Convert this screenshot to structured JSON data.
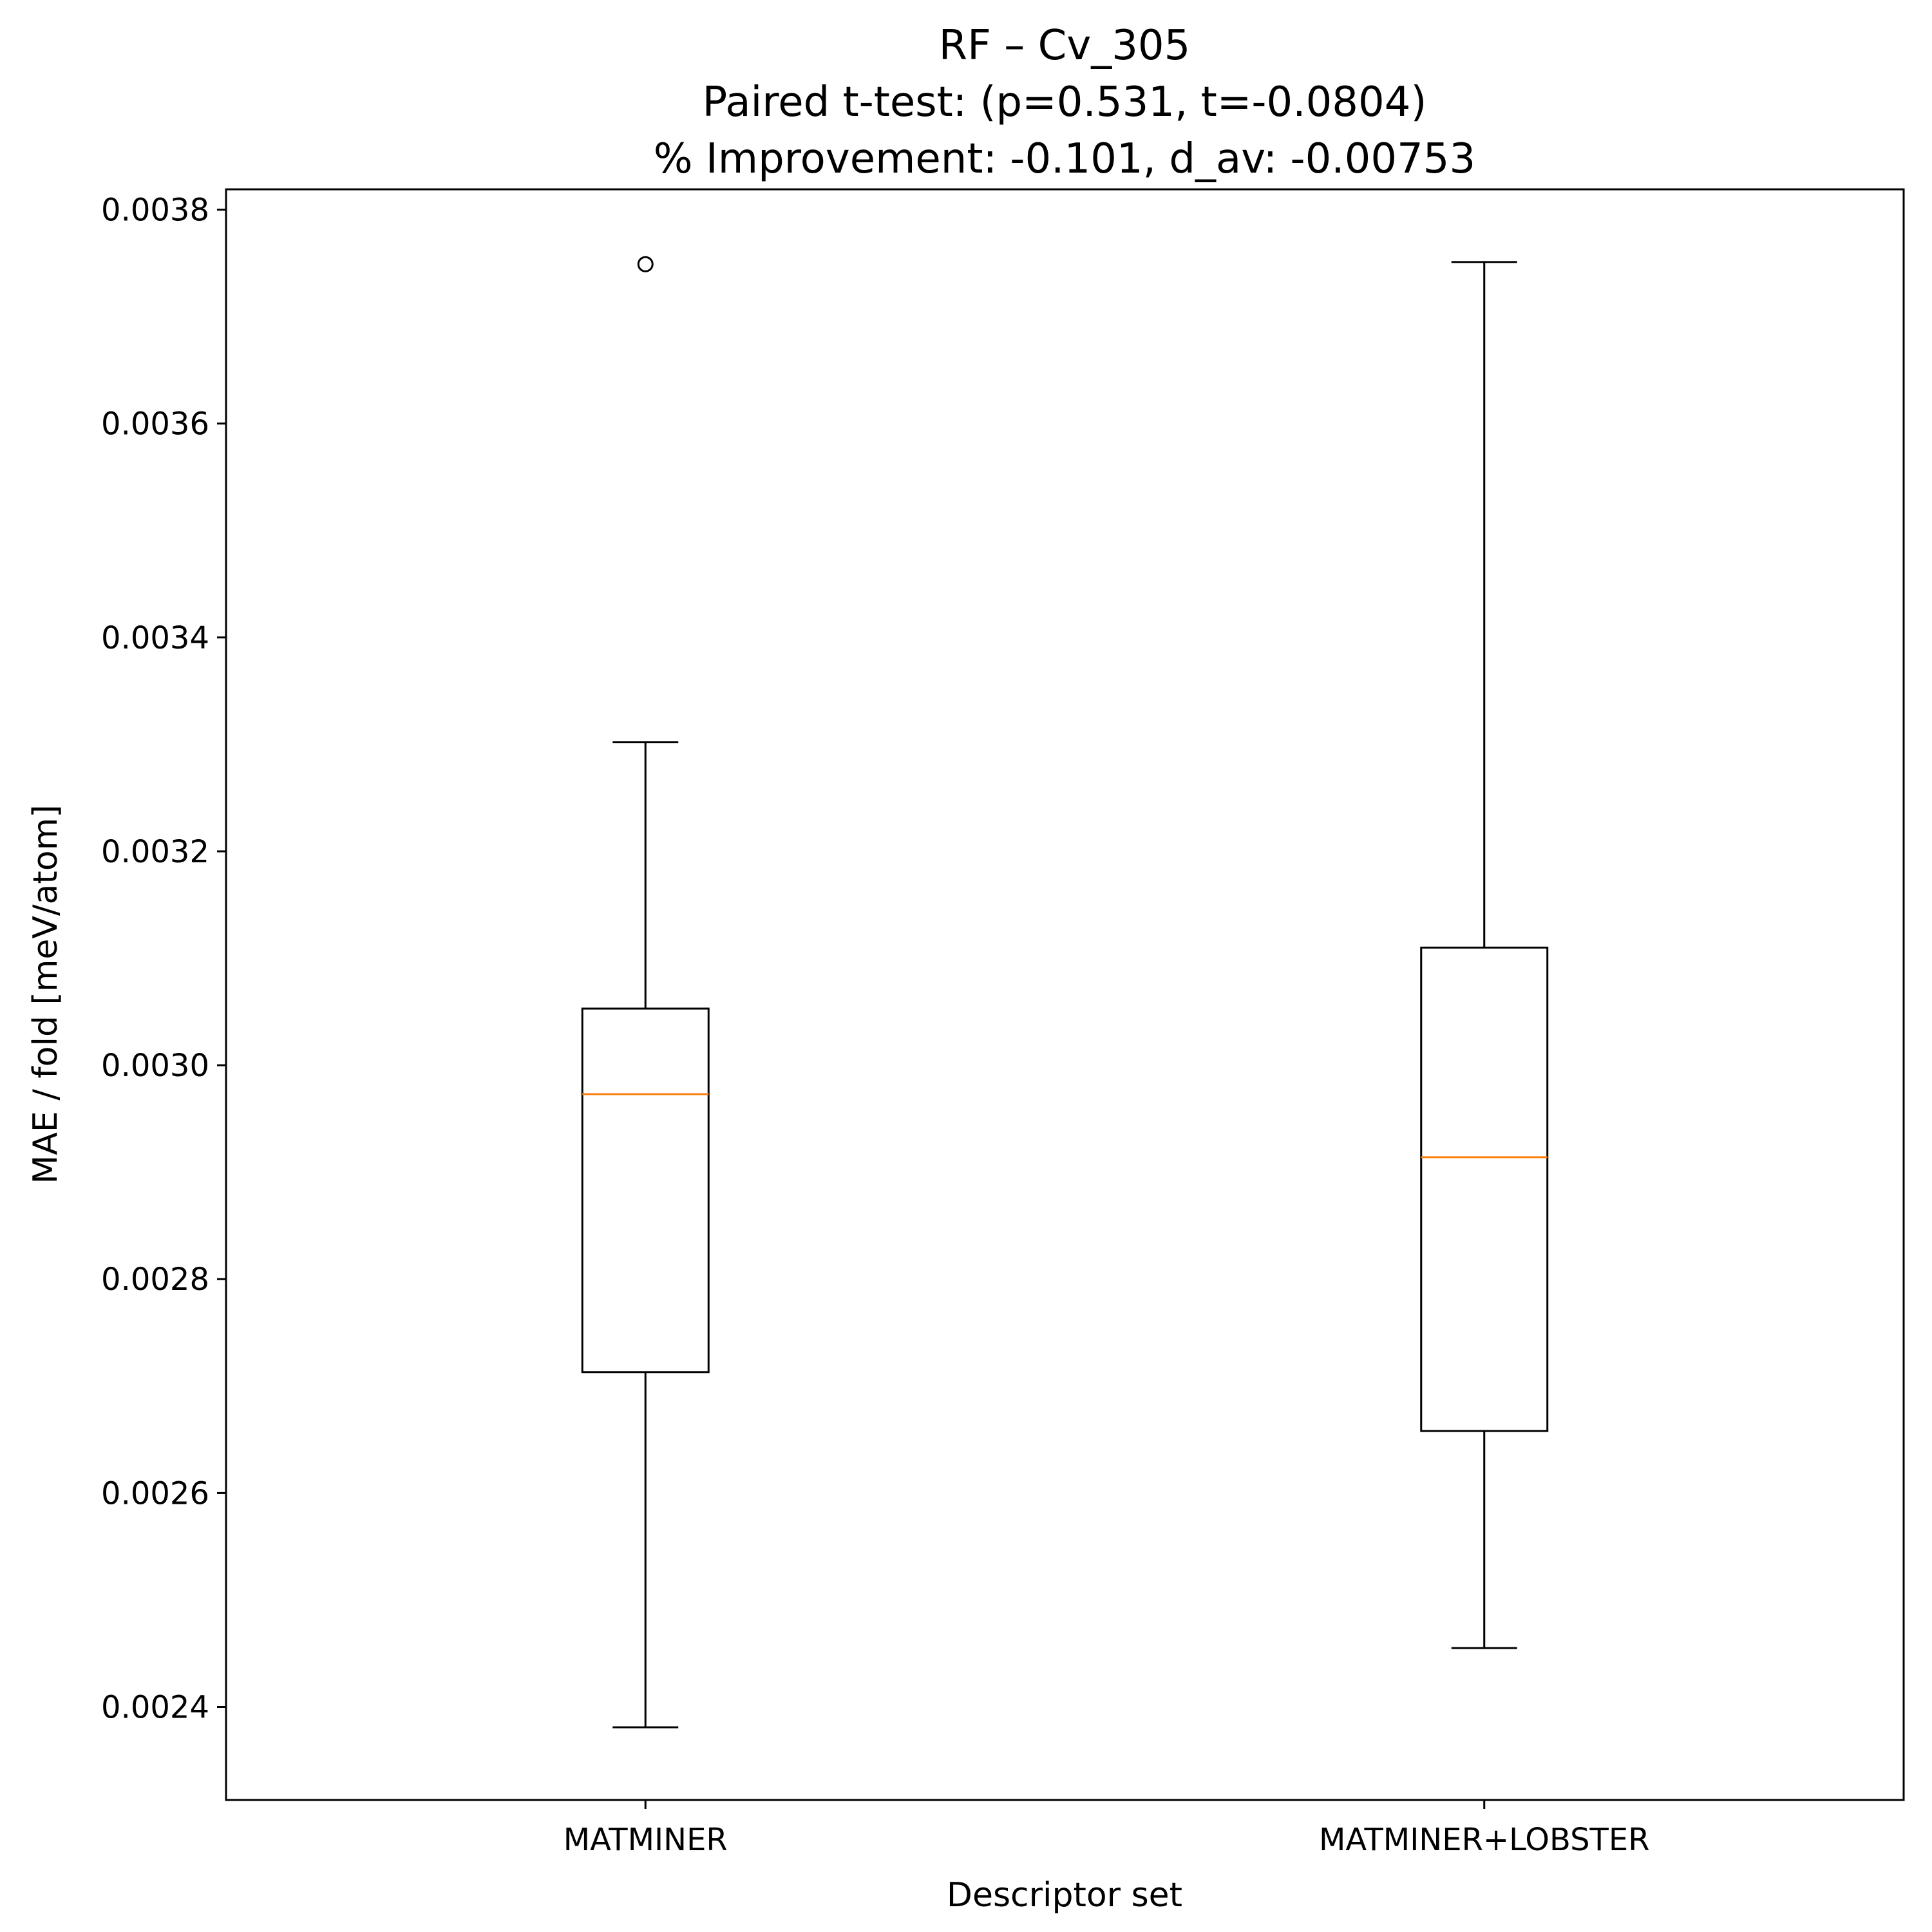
{
  "chart_data": {
    "type": "box",
    "title_lines": [
      "RF – Cv_305",
      "Paired t-test: (p=0.531, t=-0.0804)",
      "% Improvement: -0.101, d_av: -0.00753"
    ],
    "xlabel": "Descriptor set",
    "ylabel": "MAE / fold [meV/atom]",
    "categories": [
      "MATMINER",
      "MATMINER+LOBSTER"
    ],
    "ylim": [
      0.002313,
      0.003819
    ],
    "yticks": [
      0.0024,
      0.0026,
      0.0028,
      0.003,
      0.0032,
      0.0034,
      0.0036,
      0.0038
    ],
    "ytick_labels": [
      "0.0024",
      "0.0026",
      "0.0028",
      "0.0030",
      "0.0032",
      "0.0034",
      "0.0036",
      "0.0038"
    ],
    "grid": false,
    "series": [
      {
        "name": "MATMINER",
        "whisker_low": 0.002381,
        "q1": 0.002713,
        "median": 0.002973,
        "q3": 0.003053,
        "whisker_high": 0.003302,
        "outliers": [
          0.003749
        ]
      },
      {
        "name": "MATMINER+LOBSTER",
        "whisker_low": 0.002455,
        "q1": 0.002658,
        "median": 0.002914,
        "q3": 0.00311,
        "whisker_high": 0.003751,
        "outliers": []
      }
    ],
    "colors": {
      "box": "#000000",
      "median": "#ff7f0e",
      "background": "#ffffff"
    }
  }
}
